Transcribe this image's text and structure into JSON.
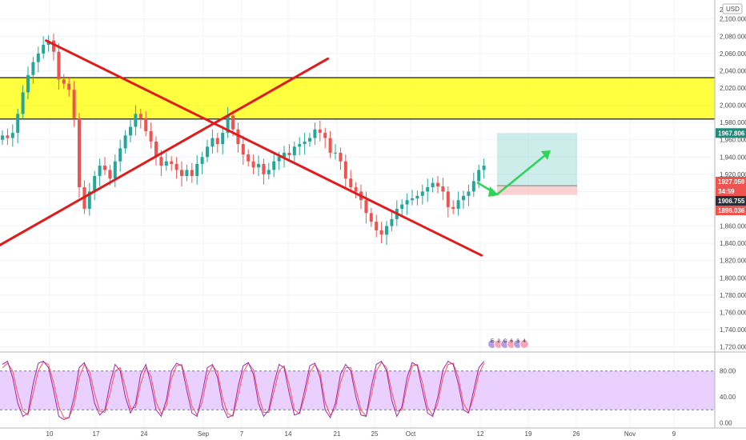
{
  "currency_label": "USD",
  "colors": {
    "zone": "#ffff00",
    "trend": "#e01b1b",
    "arrow": "#2ed45a",
    "up": "#26a69a",
    "down": "#ef5350",
    "stoch_fill": "#e6c8ff",
    "stoch_k": "#9c27b0",
    "stoch_d": "#ff5252",
    "price_tag": "#ef5350",
    "target_tag": "#1e8a7a",
    "stop_tag": "#ef5350",
    "entry_tag": "#2a2e39"
  },
  "chart_data": [
    {
      "type": "candlestick",
      "y_ticks": [
        "2,100.000",
        "2,080.000",
        "2,060.000",
        "2,040.000",
        "2,020.000",
        "2,000.000",
        "1,980.000",
        "1,960.000",
        "1,940.000",
        "1,920.000",
        "1,900.000",
        "1,880.000",
        "1,860.000",
        "1,840.000",
        "1,820.000",
        "1,800.000",
        "1,780.000",
        "1,760.000",
        "1,740.000",
        "1,720.000"
      ],
      "y_top_partial": "2,1",
      "ylim": [
        1714,
        2122
      ],
      "x_ticks": [
        "10",
        "17",
        "24",
        "Sep",
        "7",
        "14",
        "21",
        "25",
        "Oct",
        "12",
        "19",
        "26",
        "Nov",
        "9"
      ],
      "zone": {
        "top": 2032,
        "bottom": 1984
      },
      "lines": [
        {
          "name": "downtrend",
          "from": {
            "day": 9,
            "price": 2075
          },
          "to": {
            "day": 94,
            "price": 1826
          }
        },
        {
          "name": "uptrend",
          "from": {
            "day": 0,
            "price": 1838
          },
          "to": {
            "day": 64,
            "price": 2054
          }
        }
      ],
      "position": {
        "target": 1967.806,
        "entry": 1906.755,
        "stop": 1896.036
      },
      "price_labels": {
        "target": "1967.806",
        "current": "1927.059",
        "countdown": "34:59",
        "entry": "1906.755",
        "stop": "1896.036"
      },
      "candles_close": [
        1965,
        1962,
        1968,
        1990,
        2015,
        2035,
        2050,
        2060,
        2070,
        2075,
        2062,
        2030,
        2025,
        2018,
        1985,
        1905,
        1880,
        1900,
        1918,
        1930,
        1925,
        1915,
        1935,
        1950,
        1965,
        1975,
        1990,
        1985,
        1970,
        1958,
        1940,
        1930,
        1935,
        1932,
        1925,
        1918,
        1925,
        1918,
        1932,
        1940,
        1952,
        1962,
        1955,
        1968,
        1988,
        1972,
        1955,
        1943,
        1935,
        1928,
        1932,
        1920,
        1925,
        1935,
        1940,
        1945,
        1942,
        1952,
        1955,
        1958,
        1962,
        1972,
        1968,
        1962,
        1945,
        1945,
        1935,
        1915,
        1905,
        1900,
        1890,
        1875,
        1865,
        1855,
        1850,
        1860,
        1868,
        1880,
        1885,
        1890,
        1892,
        1895,
        1900,
        1905,
        1910,
        1906,
        1900,
        1882,
        1880,
        1890,
        1895,
        1900,
        1912,
        1925,
        1930
      ],
      "candles_open": [
        1960,
        1965,
        1962,
        1968,
        1990,
        2015,
        2035,
        2050,
        2060,
        2070,
        2075,
        2062,
        2030,
        2025,
        2018,
        1985,
        1905,
        1880,
        1900,
        1918,
        1930,
        1925,
        1915,
        1935,
        1950,
        1965,
        1975,
        1990,
        1985,
        1970,
        1958,
        1940,
        1930,
        1935,
        1932,
        1925,
        1918,
        1925,
        1918,
        1932,
        1940,
        1952,
        1962,
        1955,
        1968,
        1988,
        1972,
        1955,
        1943,
        1935,
        1928,
        1932,
        1920,
        1925,
        1935,
        1940,
        1945,
        1942,
        1952,
        1955,
        1958,
        1962,
        1972,
        1968,
        1962,
        1945,
        1945,
        1935,
        1915,
        1905,
        1900,
        1890,
        1875,
        1865,
        1855,
        1850,
        1860,
        1868,
        1880,
        1885,
        1890,
        1892,
        1895,
        1900,
        1905,
        1910,
        1906,
        1900,
        1882,
        1880,
        1890,
        1895,
        1900,
        1912,
        1925
      ]
    },
    {
      "type": "line",
      "name": "stochastic",
      "y_ticks": [
        "80.00",
        "40.00",
        "0.00"
      ],
      "ylim": [
        -8,
        108
      ],
      "bands": [
        80,
        20
      ],
      "k_values": [
        90,
        95,
        70,
        30,
        10,
        15,
        60,
        92,
        95,
        85,
        50,
        10,
        5,
        8,
        40,
        85,
        93,
        70,
        30,
        12,
        20,
        60,
        90,
        80,
        40,
        15,
        30,
        75,
        90,
        60,
        20,
        10,
        35,
        80,
        92,
        88,
        50,
        15,
        10,
        45,
        85,
        90,
        70,
        25,
        8,
        12,
        55,
        88,
        93,
        75,
        30,
        10,
        20,
        60,
        90,
        85,
        45,
        12,
        15,
        50,
        88,
        92,
        70,
        20,
        8,
        30,
        75,
        90,
        80,
        40,
        12,
        10,
        55,
        90,
        95,
        80,
        35,
        10,
        25,
        70,
        93,
        88,
        50,
        15,
        10,
        40,
        82,
        95,
        90,
        60,
        20,
        15,
        50,
        85,
        95
      ],
      "d_values": [
        85,
        92,
        80,
        45,
        18,
        12,
        45,
        80,
        94,
        90,
        62,
        25,
        8,
        8,
        28,
        70,
        90,
        80,
        45,
        18,
        16,
        45,
        80,
        85,
        55,
        22,
        24,
        60,
        85,
        72,
        32,
        14,
        26,
        68,
        88,
        90,
        62,
        26,
        12,
        32,
        72,
        88,
        78,
        38,
        14,
        10,
        42,
        78,
        92,
        82,
        42,
        16,
        16,
        48,
        80,
        88,
        58,
        20,
        14,
        40,
        78,
        90,
        78,
        32,
        12,
        22,
        62,
        85,
        85,
        52,
        20,
        10,
        42,
        80,
        93,
        85,
        48,
        18,
        20,
        58,
        88,
        90,
        62,
        24,
        12,
        30,
        70,
        90,
        92,
        70,
        30,
        16,
        40,
        75,
        92
      ]
    }
  ],
  "indicator_badges": [
    "E",
    "2",
    "C",
    "6",
    "3",
    "4"
  ]
}
